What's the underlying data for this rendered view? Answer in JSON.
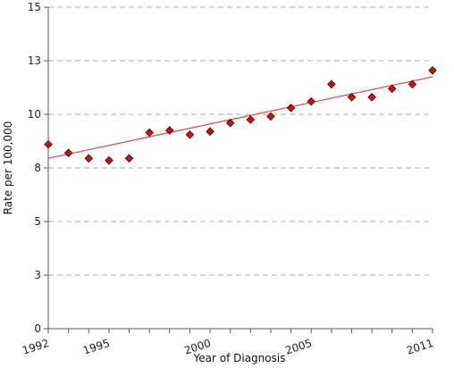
{
  "chart_data": {
    "type": "scatter",
    "title": "",
    "xlabel": "Year of Diagnosis",
    "ylabel": "Rate per 100,000",
    "xlim": [
      1992,
      2011
    ],
    "ylim": [
      0,
      15
    ],
    "y_ticks": [
      0,
      2.5,
      5,
      7.5,
      10,
      12.5,
      15
    ],
    "y_tick_labels": [
      "0",
      "3",
      "5",
      "8",
      "10",
      "13",
      "15"
    ],
    "x_ticks": [
      1992,
      1995,
      2000,
      2005,
      2011
    ],
    "x_tick_labels": [
      "1992",
      "1995",
      "2000",
      "2005",
      "2011"
    ],
    "grid": "horizontal dashed",
    "series": [
      {
        "marker": "diamond",
        "color": "#cc1111",
        "points": [
          {
            "x": 1992,
            "y": 8.6
          },
          {
            "x": 1993,
            "y": 8.2
          },
          {
            "x": 1994,
            "y": 7.95
          },
          {
            "x": 1995,
            "y": 7.85
          },
          {
            "x": 1996,
            "y": 7.95
          },
          {
            "x": 1997,
            "y": 9.15
          },
          {
            "x": 1998,
            "y": 9.25
          },
          {
            "x": 1999,
            "y": 9.05
          },
          {
            "x": 2000,
            "y": 9.2
          },
          {
            "x": 2001,
            "y": 9.6
          },
          {
            "x": 2002,
            "y": 9.75
          },
          {
            "x": 2003,
            "y": 9.9
          },
          {
            "x": 2004,
            "y": 10.3
          },
          {
            "x": 2005,
            "y": 10.6
          },
          {
            "x": 2006,
            "y": 11.4
          },
          {
            "x": 2007,
            "y": 10.8
          },
          {
            "x": 2008,
            "y": 10.8
          },
          {
            "x": 2009,
            "y": 11.2
          },
          {
            "x": 2010,
            "y": 11.4
          },
          {
            "x": 2011,
            "y": 12.05
          }
        ]
      }
    ],
    "trend_line": {
      "type": "linear",
      "color": "#e05050",
      "start": {
        "x": 1992,
        "y": 7.95
      },
      "end": {
        "x": 2011,
        "y": 11.75
      }
    }
  }
}
